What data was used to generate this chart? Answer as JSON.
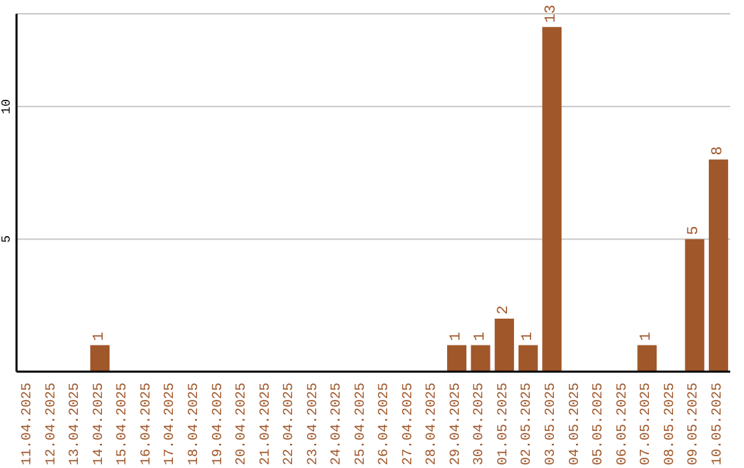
{
  "chart_data": {
    "type": "bar",
    "categories": [
      "11.04.2025",
      "12.04.2025",
      "13.04.2025",
      "14.04.2025",
      "15.04.2025",
      "16.04.2025",
      "17.04.2025",
      "18.04.2025",
      "19.04.2025",
      "20.04.2025",
      "21.04.2025",
      "22.04.2025",
      "23.04.2025",
      "24.04.2025",
      "25.04.2025",
      "26.04.2025",
      "27.04.2025",
      "28.04.2025",
      "29.04.2025",
      "30.04.2025",
      "01.05.2025",
      "02.05.2025",
      "03.05.2025",
      "04.05.2025",
      "05.05.2025",
      "06.05.2025",
      "07.05.2025",
      "08.05.2025",
      "09.05.2025",
      "10.05.2025"
    ],
    "values": [
      0,
      0,
      0,
      1,
      0,
      0,
      0,
      0,
      0,
      0,
      0,
      0,
      0,
      0,
      0,
      0,
      0,
      0,
      1,
      1,
      2,
      1,
      13,
      0,
      0,
      0,
      1,
      0,
      5,
      8
    ],
    "value_labels": [
      null,
      null,
      null,
      "1",
      null,
      null,
      null,
      null,
      null,
      null,
      null,
      null,
      null,
      null,
      null,
      null,
      null,
      null,
      "1",
      "1",
      "2",
      "1",
      "13",
      null,
      null,
      null,
      "1",
      null,
      "5",
      "8"
    ],
    "color": "#a0572a",
    "ylim": [
      0,
      13.5
    ],
    "yticks": [
      5,
      10
    ],
    "grid": "y",
    "legend": false
  }
}
